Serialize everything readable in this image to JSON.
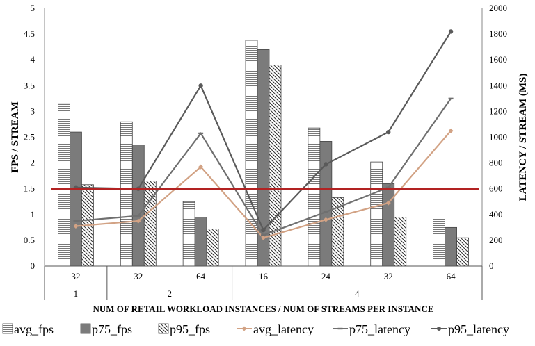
{
  "chart_data": {
    "type": "bar",
    "x_title": "NUM OF RETAIL WORKLOAD INSTANCES / NUM OF STREAMS PER INSTANCE",
    "y_left_title": "FPS / STREAM",
    "y_right_title": "LATENCY / STREAM (MS)",
    "y_left_ticks": [
      "0",
      "0.5",
      "1",
      "1.5",
      "2",
      "2.5",
      "3",
      "3.5",
      "4",
      "4.5",
      "5"
    ],
    "y_right_ticks": [
      "0",
      "200",
      "400",
      "600",
      "800",
      "1000",
      "1200",
      "1400",
      "1600",
      "1800",
      "2000"
    ],
    "y_left_range": [
      0,
      5
    ],
    "y_right_range": [
      0,
      2000
    ],
    "streams": [
      "32",
      "32",
      "64",
      "16",
      "24",
      "32",
      "64"
    ],
    "instances": [
      {
        "label": "1",
        "span": 1
      },
      {
        "label": "2",
        "span": 2
      },
      {
        "label": "4",
        "span": 4
      }
    ],
    "bar_series": [
      {
        "name": "avg_fps",
        "values": [
          3.15,
          2.8,
          1.25,
          4.38,
          2.68,
          2.02,
          0.95
        ]
      },
      {
        "name": "p75_fps",
        "values": [
          2.6,
          2.35,
          0.95,
          4.2,
          2.42,
          1.6,
          0.75
        ]
      },
      {
        "name": "p95_fps",
        "values": [
          1.58,
          1.65,
          0.72,
          3.9,
          1.33,
          0.95,
          0.55
        ]
      }
    ],
    "line_series": [
      {
        "name": "avg_latency",
        "values": [
          310,
          350,
          770,
          220,
          360,
          490,
          1050
        ]
      },
      {
        "name": "p75_latency",
        "values": [
          350,
          390,
          1030,
          240,
          420,
          610,
          1300
        ]
      },
      {
        "name": "p95_latency",
        "values": [
          610,
          600,
          1400,
          280,
          790,
          1040,
          1820
        ]
      }
    ],
    "threshold_line": {
      "axis": "left",
      "value": 1.5,
      "color": "#b22222"
    },
    "legend_placement": "bottom",
    "grid": false
  }
}
